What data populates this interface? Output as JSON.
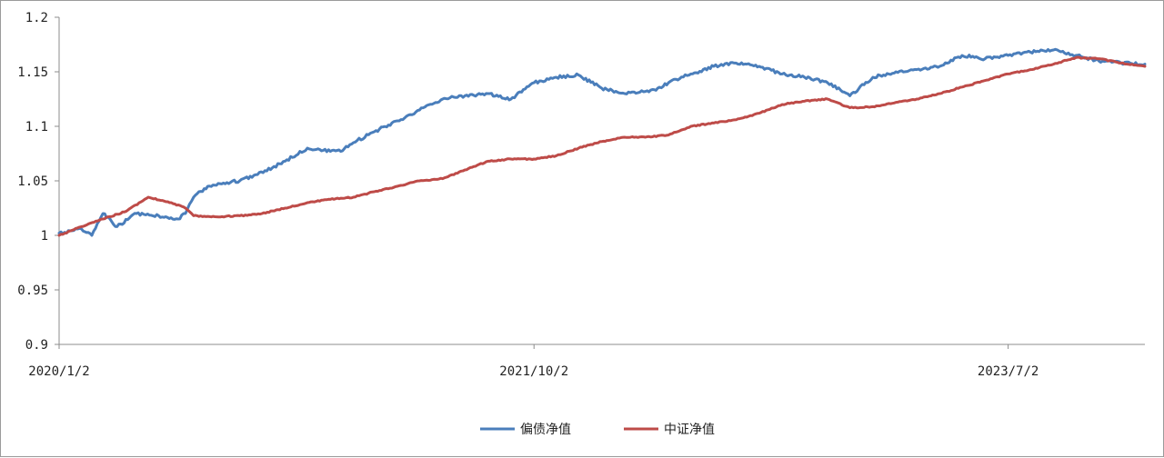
{
  "chart_data": {
    "type": "line",
    "title": "",
    "xlabel": "",
    "ylabel": "",
    "ylim": [
      0.9,
      1.2
    ],
    "yticks": [
      "0.9",
      "0.95",
      "1",
      "1.05",
      "1.1",
      "1.15",
      "1.2"
    ],
    "xticks": [
      "2020/1/2",
      "2021/10/2",
      "2023/7/2"
    ],
    "x_range": [
      "2020/1/2",
      "2024/1/2"
    ],
    "grid": false,
    "legend": "bottom-center",
    "series": [
      {
        "name": "偏债净值",
        "color": "#4a7ebb",
        "x": [
          "2020/1/2",
          "2020/2/1",
          "2020/2/15",
          "2020/3/1",
          "2020/3/20",
          "2020/4/15",
          "2020/5/15",
          "2020/6/10",
          "2020/6/20",
          "2020/7/1",
          "2020/7/20",
          "2020/8/10",
          "2020/9/1",
          "2020/9/20",
          "2020/10/15",
          "2020/11/1",
          "2020/12/1",
          "2021/1/1",
          "2021/1/15",
          "2021/2/1",
          "2021/3/1",
          "2021/4/1",
          "2021/5/1",
          "2021/6/1",
          "2021/7/1",
          "2021/8/1",
          "2021/9/1",
          "2021/10/2",
          "2021/11/1",
          "2021/12/1",
          "2022/1/1",
          "2022/2/1",
          "2022/3/1",
          "2022/3/15",
          "2022/4/1",
          "2022/5/1",
          "2022/6/1",
          "2022/7/1",
          "2022/8/1",
          "2022/9/1",
          "2022/10/1",
          "2022/11/1",
          "2022/12/1",
          "2023/1/1",
          "2023/2/1",
          "2023/3/1",
          "2023/4/1",
          "2023/5/1",
          "2023/6/1",
          "2023/7/2",
          "2023/8/1",
          "2023/8/15",
          "2023/9/1",
          "2023/10/1",
          "2023/11/1",
          "2023/12/1",
          "2024/1/2"
        ],
        "values": [
          1.002,
          1.006,
          1.0,
          1.02,
          1.008,
          1.02,
          1.018,
          1.015,
          1.02,
          1.035,
          1.045,
          1.048,
          1.05,
          1.055,
          1.062,
          1.068,
          1.08,
          1.077,
          1.077,
          1.085,
          1.095,
          1.105,
          1.115,
          1.125,
          1.128,
          1.13,
          1.125,
          1.14,
          1.145,
          1.147,
          1.135,
          1.13,
          1.132,
          1.133,
          1.14,
          1.148,
          1.155,
          1.158,
          1.155,
          1.148,
          1.145,
          1.14,
          1.128,
          1.145,
          1.15,
          1.152,
          1.155,
          1.165,
          1.162,
          1.165,
          1.168,
          1.17,
          1.17,
          1.165,
          1.16,
          1.158,
          1.157
        ]
      },
      {
        "name": "中证净值",
        "color": "#be4b48",
        "x": [
          "2020/1/2",
          "2020/2/1",
          "2020/3/1",
          "2020/4/1",
          "2020/5/1",
          "2020/6/1",
          "2020/6/20",
          "2020/7/1",
          "2020/8/1",
          "2020/9/1",
          "2020/10/1",
          "2020/11/1",
          "2020/12/1",
          "2021/1/1",
          "2021/2/1",
          "2021/3/1",
          "2021/4/1",
          "2021/5/1",
          "2021/6/1",
          "2021/7/1",
          "2021/8/1",
          "2021/9/1",
          "2021/10/2",
          "2021/11/1",
          "2021/12/1",
          "2022/1/1",
          "2022/2/1",
          "2022/3/1",
          "2022/4/1",
          "2022/5/1",
          "2022/6/1",
          "2022/7/1",
          "2022/8/1",
          "2022/9/1",
          "2022/10/1",
          "2022/11/1",
          "2022/12/1",
          "2023/1/1",
          "2023/2/1",
          "2023/3/1",
          "2023/4/1",
          "2023/5/1",
          "2023/6/1",
          "2023/7/2",
          "2023/8/1",
          "2023/9/1",
          "2023/10/1",
          "2023/11/1",
          "2023/12/1",
          "2024/1/2"
        ],
        "values": [
          1.0,
          1.008,
          1.015,
          1.022,
          1.035,
          1.03,
          1.025,
          1.018,
          1.017,
          1.018,
          1.02,
          1.025,
          1.03,
          1.033,
          1.035,
          1.04,
          1.045,
          1.05,
          1.052,
          1.06,
          1.068,
          1.07,
          1.07,
          1.073,
          1.08,
          1.086,
          1.09,
          1.09,
          1.092,
          1.1,
          1.103,
          1.106,
          1.112,
          1.12,
          1.123,
          1.125,
          1.117,
          1.118,
          1.122,
          1.125,
          1.13,
          1.136,
          1.142,
          1.148,
          1.152,
          1.157,
          1.163,
          1.162,
          1.158,
          1.155
        ]
      }
    ]
  }
}
